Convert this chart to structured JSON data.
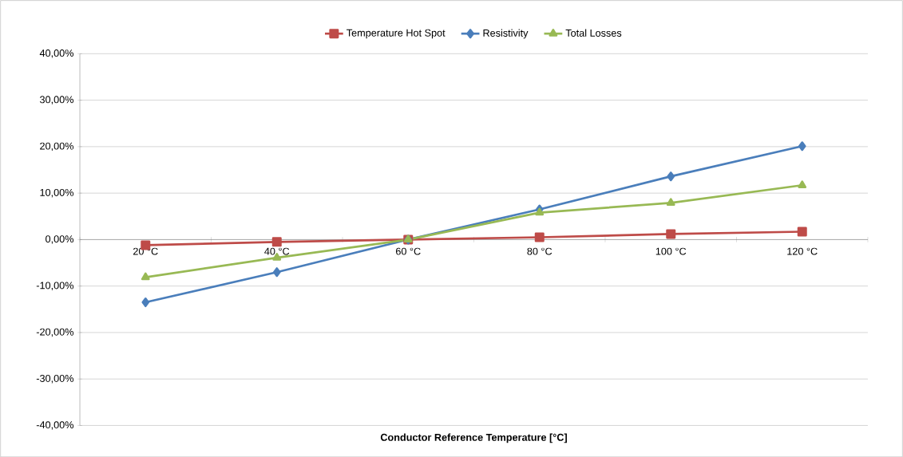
{
  "chart_data": {
    "type": "line",
    "xlabel": "Conductor Reference Temperature [°C]",
    "categories": [
      "20 °C",
      "40 °C",
      "60 °C",
      "80 °C",
      "100 °C",
      "120 °C"
    ],
    "series": [
      {
        "name": "Temperature Hot Spot",
        "color": "#be4b48",
        "marker": "square",
        "values": [
          -1.2,
          -0.5,
          0,
          0.5,
          1.2,
          1.7
        ]
      },
      {
        "name": "Resistivity",
        "color": "#4a7ebb",
        "marker": "diamond",
        "values": [
          -13.5,
          -7.0,
          0,
          6.5,
          13.6,
          20.1
        ]
      },
      {
        "name": "Total Losses",
        "color": "#98b954",
        "marker": "triangle",
        "values": [
          -8.1,
          -3.9,
          0,
          5.8,
          7.9,
          11.7
        ]
      }
    ],
    "ylim": [
      -40,
      40
    ],
    "yticks": [
      {
        "value": -40,
        "label": "-40,00%"
      },
      {
        "value": -30,
        "label": "-30,00%"
      },
      {
        "value": -20,
        "label": "-20,00%"
      },
      {
        "value": -10,
        "label": "-10,00%"
      },
      {
        "value": 0,
        "label": "0,00%"
      },
      {
        "value": 10,
        "label": "10,00%"
      },
      {
        "value": 20,
        "label": "20,00%"
      },
      {
        "value": 30,
        "label": "30,00%"
      },
      {
        "value": 40,
        "label": "40,00%"
      }
    ],
    "grid": "y",
    "legend": "top"
  }
}
